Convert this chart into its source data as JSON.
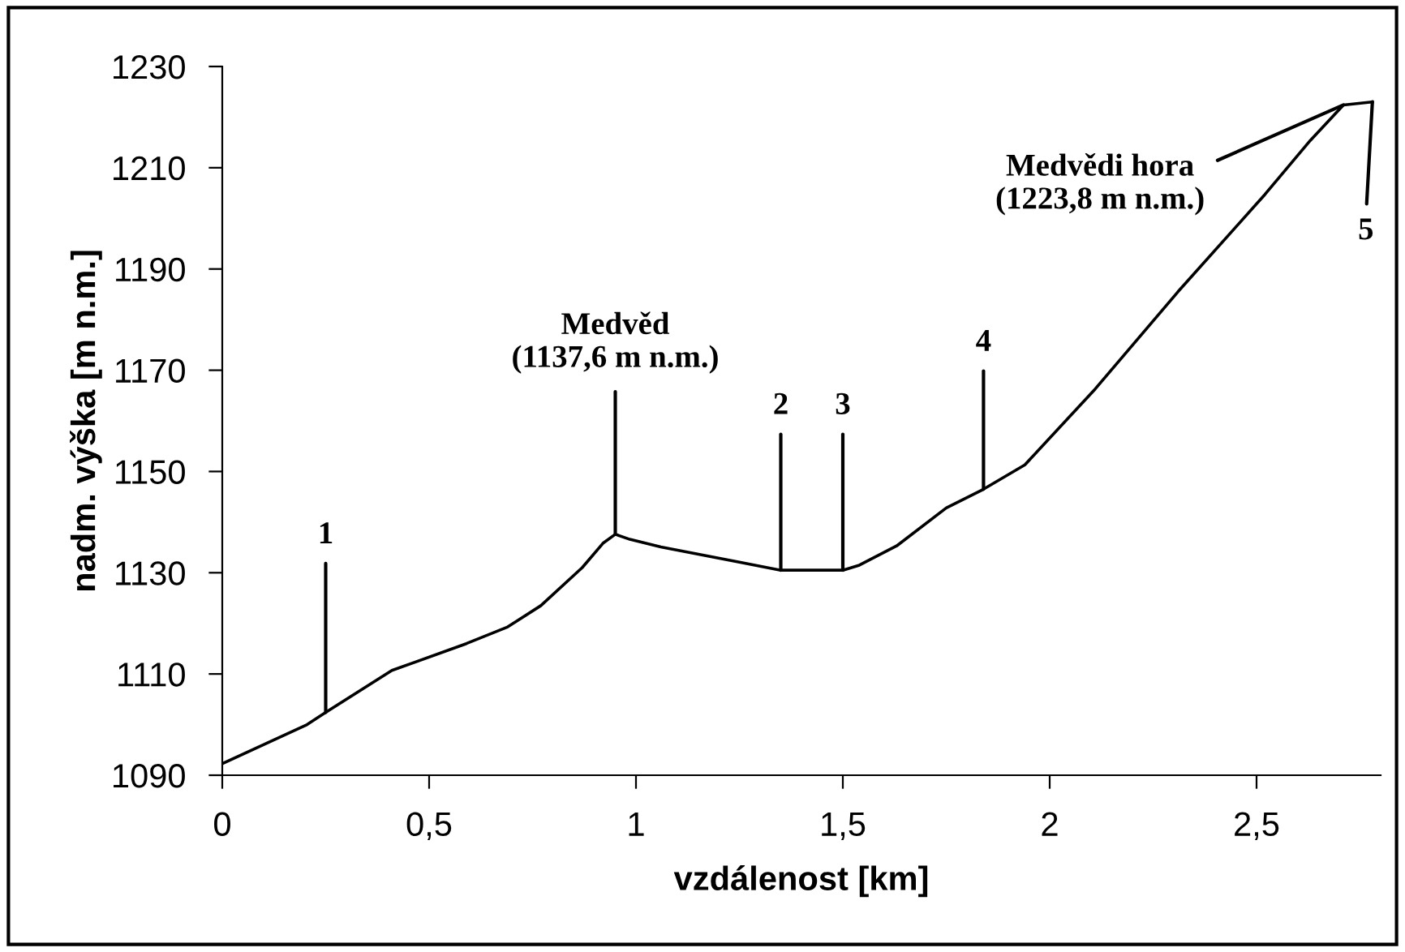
{
  "chart_data": {
    "type": "line",
    "xlabel": "vzdálenost [km]",
    "ylabel": "nadm. výška [m n.m.]",
    "series": [
      {
        "color": "#000000",
        "x": [
          0,
          0.205,
          0.25,
          0.41,
          0.59,
          0.69,
          0.77,
          0.87,
          0.92,
          0.95,
          0.985,
          1.06,
          1.25,
          1.35,
          1.5,
          1.54,
          1.63,
          1.75,
          1.84,
          1.94,
          2.11,
          2.31,
          2.52,
          2.63,
          2.71,
          2.78
        ],
        "values": [
          1092.3,
          1100.0,
          1102.4,
          1110.7,
          1116.0,
          1119.3,
          1123.5,
          1131.0,
          1135.8,
          1137.6,
          1136.6,
          1135.1,
          1132.1,
          1130.5,
          1130.5,
          1131.5,
          1135.3,
          1142.8,
          1146.5,
          1151.3,
          1166.3,
          1185.5,
          1204.7,
          1215.4,
          1222.4,
          1223.0
        ]
      }
    ],
    "xlim": [
      0,
      2.8
    ],
    "ylim": [
      1090,
      1230
    ],
    "xticks": [
      0,
      {
        "value": 0.5,
        "label": "0,5"
      },
      1,
      {
        "value": 1.5,
        "label": "1,5"
      },
      2,
      {
        "value": 2.5,
        "label": "2,5"
      }
    ],
    "yticks": [
      1090,
      1110,
      1130,
      1150,
      1170,
      1190,
      1210,
      1230
    ],
    "grid": false,
    "legend": false,
    "marker": "none",
    "line_style": "solid",
    "annotations": [
      {
        "text": "1",
        "x": 0.25,
        "y": 1102.4
      },
      {
        "text": "Medvěd\n(1137,6 m n.m.)",
        "x": 0.95,
        "y": 1137.6
      },
      {
        "text": "2",
        "x": 1.35,
        "y": 1130.5
      },
      {
        "text": "3",
        "x": 1.5,
        "y": 1130.5
      },
      {
        "text": "4",
        "x": 1.84,
        "y": 1146.5
      },
      {
        "text": "Medvědi hora\n(1223,8 m n.m.)",
        "x": 2.71,
        "y": 1222.4
      },
      {
        "text": "5",
        "x": 2.78,
        "y": 1223.0
      }
    ]
  }
}
